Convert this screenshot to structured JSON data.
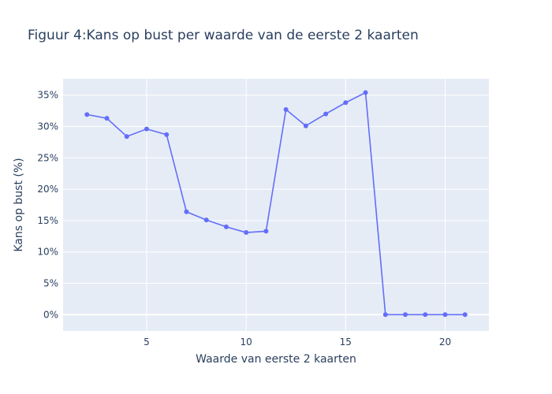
{
  "chart_data": {
    "type": "line",
    "title": "Figuur 4:Kans op bust per waarde van de eerste 2 kaarten",
    "xlabel": "Waarde van eerste 2 kaarten",
    "ylabel": "Kans op bust (%)",
    "x": [
      2,
      3,
      4,
      5,
      6,
      7,
      8,
      9,
      10,
      11,
      12,
      13,
      14,
      15,
      16,
      17,
      18,
      19,
      20,
      21
    ],
    "series": [
      {
        "values": [
          31.9,
          31.3,
          28.4,
          29.6,
          28.7,
          16.4,
          15.1,
          14.0,
          13.1,
          13.3,
          32.7,
          30.1,
          32.0,
          33.8,
          35.4,
          0,
          0,
          0,
          0,
          0
        ],
        "color": "#636efa"
      }
    ],
    "xlim": [
      0.8,
      22.2
    ],
    "ylim": [
      -2.6,
      37.6
    ],
    "xticks": [
      5,
      10,
      15,
      20
    ],
    "yticks": [
      0,
      5,
      10,
      15,
      20,
      25,
      30,
      35
    ],
    "ytick_suffix": "%",
    "grid": true,
    "plot_background": "#e5ecf6",
    "grid_color": "#ffffff"
  }
}
